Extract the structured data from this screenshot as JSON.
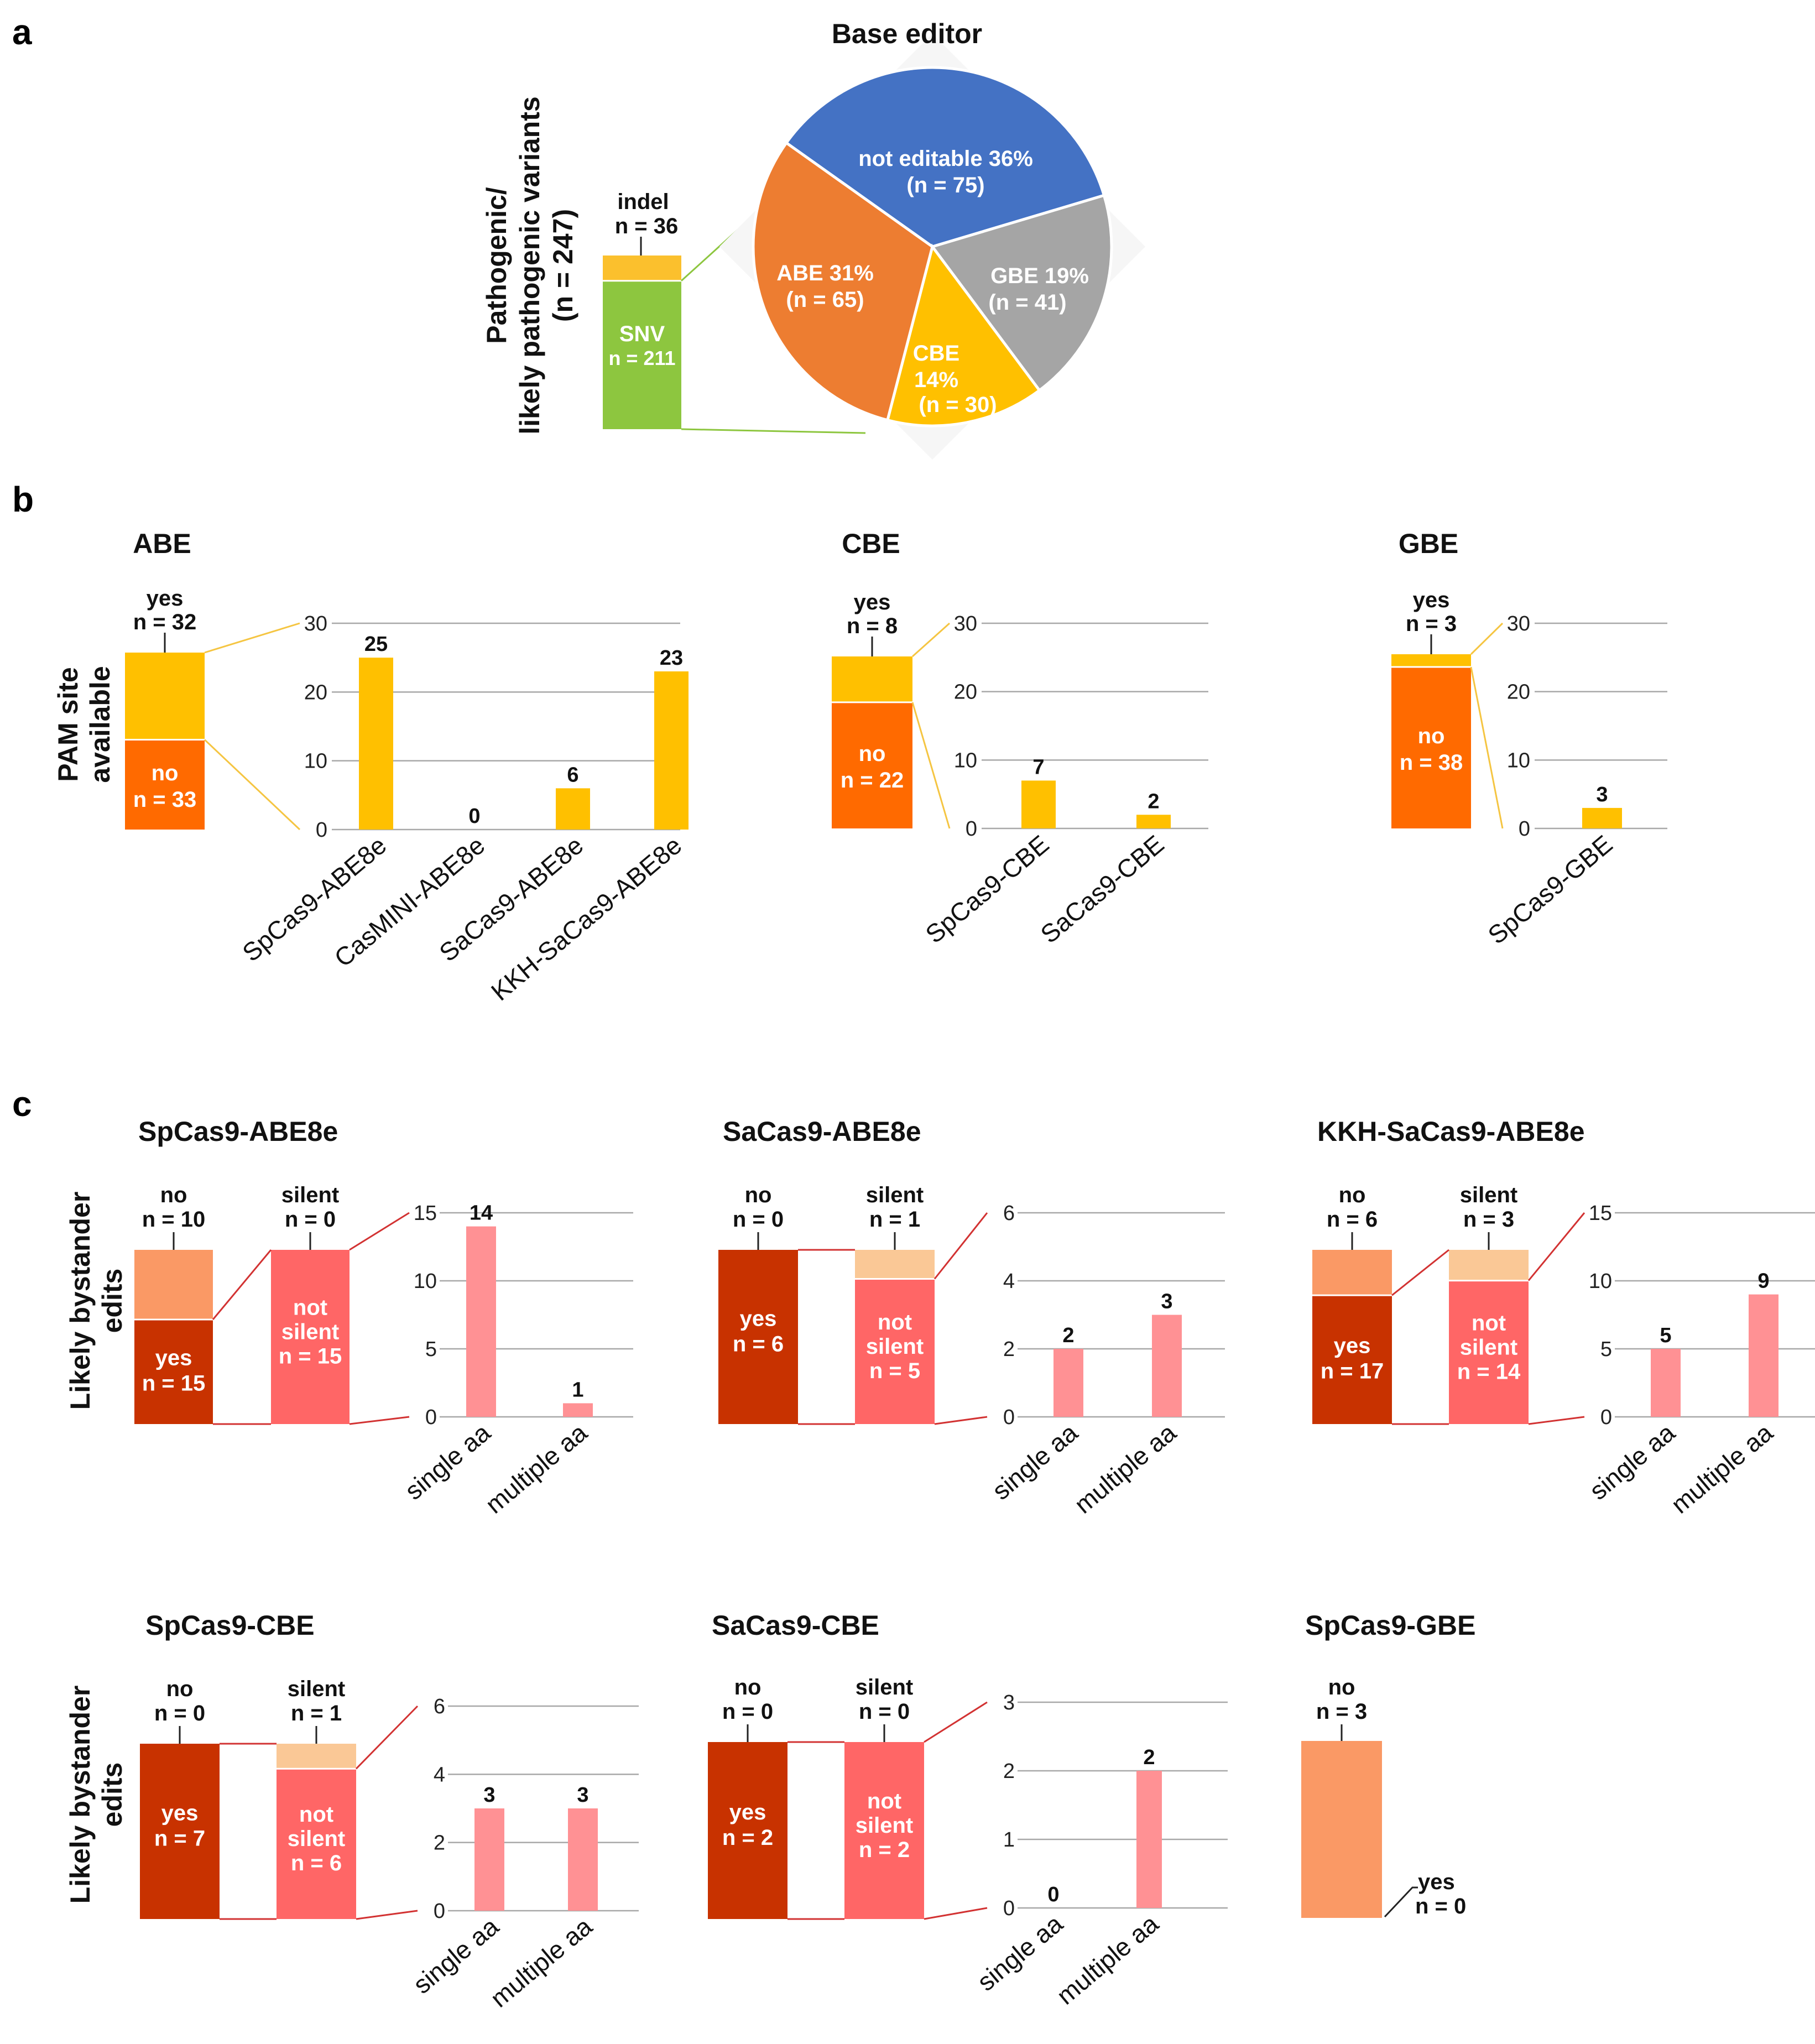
{
  "panels": {
    "a": "a",
    "b": "b",
    "c": "c"
  },
  "chart_data": [
    {
      "id": "a_stack",
      "type": "bar",
      "ylabel": "Pathogenic/likely pathogenic variants (n = 247)",
      "segments": [
        {
          "name": "SNV",
          "count": "n = 211",
          "value": 211,
          "color": "#8DC63F"
        },
        {
          "name": "indel",
          "count": "n = 36",
          "value": 36,
          "color": "#FBC02D"
        }
      ]
    },
    {
      "id": "a_pie",
      "type": "pie",
      "title": "Base editor",
      "slices": [
        {
          "name": "not editable 36%",
          "count": "(n = 75)",
          "value": 75,
          "color": "#4472C4"
        },
        {
          "name": "GBE 19%",
          "count": "(n = 41)",
          "value": 41,
          "color": "#A5A5A5"
        },
        {
          "name": "CBE",
          "pct": "14%",
          "count": "(n = 30)",
          "value": 30,
          "color": "#FFC000"
        },
        {
          "name": "ABE 31%",
          "count": "(n = 65)",
          "value": 65,
          "color": "#ED7D31"
        }
      ]
    },
    {
      "id": "b_abe",
      "type": "bar",
      "title": "ABE",
      "ylabel": "PAM site available",
      "stack": {
        "yes": "yes",
        "yes_count": "n = 32",
        "yes_value": 32,
        "no": "no",
        "no_count": "n = 33",
        "no_value": 33
      },
      "ylim": [
        0,
        30
      ],
      "ticks": [
        "0",
        "10",
        "20",
        "30"
      ],
      "categories": [
        "SpCas9-ABE8e",
        "CasMINI-ABE8e",
        "SaCas9-ABE8e",
        "KKH-SaCas9-ABE8e"
      ],
      "values": [
        25,
        0,
        6,
        23
      ],
      "labels": [
        "25",
        "0",
        "6",
        "23"
      ]
    },
    {
      "id": "b_cbe",
      "type": "bar",
      "title": "CBE",
      "stack": {
        "yes": "yes",
        "yes_count": "n = 8",
        "yes_value": 8,
        "no": "no",
        "no_count": "n = 22",
        "no_value": 22
      },
      "ylim": [
        0,
        30
      ],
      "ticks": [
        "0",
        "10",
        "20",
        "30"
      ],
      "categories": [
        "SpCas9-CBE",
        "SaCas9-CBE"
      ],
      "values": [
        7,
        2
      ],
      "labels": [
        "7",
        "2"
      ]
    },
    {
      "id": "b_gbe",
      "type": "bar",
      "title": "GBE",
      "stack": {
        "yes": "yes",
        "yes_count": "n = 3",
        "yes_value": 3,
        "no": "no",
        "no_count": "n = 38",
        "no_value": 38
      },
      "ylim": [
        0,
        30
      ],
      "ticks": [
        "0",
        "10",
        "20",
        "30"
      ],
      "categories": [
        "SpCas9-GBE"
      ],
      "values": [
        3
      ],
      "labels": [
        "3"
      ]
    },
    {
      "id": "c_sp_abe",
      "type": "bar",
      "title": "SpCas9-ABE8e",
      "ylabel": "Likely bystander edits",
      "bystander": {
        "no": "no",
        "no_count": "n = 10",
        "no_value": 10,
        "yes": "yes",
        "yes_count": "n = 15",
        "yes_value": 15
      },
      "silence": {
        "silent": "silent",
        "silent_count": "n = 0",
        "silent_value": 0,
        "not_silent": "not silent",
        "not_silent_count": "n = 15",
        "not_silent_value": 15
      },
      "ylim": [
        0,
        15
      ],
      "ticks": [
        "0",
        "5",
        "10",
        "15"
      ],
      "categories": [
        "single aa",
        "multiple aa"
      ],
      "values": [
        14,
        1
      ],
      "labels": [
        "14",
        "1"
      ]
    },
    {
      "id": "c_sa_abe",
      "type": "bar",
      "title": "SaCas9-ABE8e",
      "bystander": {
        "no": "no",
        "no_count": "n = 0",
        "no_value": 0,
        "yes": "yes",
        "yes_count": "n = 6",
        "yes_value": 6
      },
      "silence": {
        "silent": "silent",
        "silent_count": "n = 1",
        "silent_value": 1,
        "not_silent": "not silent",
        "not_silent_count": "n = 5",
        "not_silent_value": 5
      },
      "ylim": [
        0,
        6
      ],
      "ticks": [
        "0",
        "2",
        "4",
        "6"
      ],
      "categories": [
        "single aa",
        "multiple aa"
      ],
      "values": [
        2,
        3
      ],
      "labels": [
        "2",
        "3"
      ]
    },
    {
      "id": "c_kkh_abe",
      "type": "bar",
      "title": "KKH-SaCas9-ABE8e",
      "bystander": {
        "no": "no",
        "no_count": "n = 6",
        "no_value": 6,
        "yes": "yes",
        "yes_count": "n = 17",
        "yes_value": 17
      },
      "silence": {
        "silent": "silent",
        "silent_count": "n = 3",
        "silent_value": 3,
        "not_silent": "not silent",
        "not_silent_count": "n = 14",
        "not_silent_value": 14
      },
      "ylim": [
        0,
        15
      ],
      "ticks": [
        "0",
        "5",
        "10",
        "15"
      ],
      "categories": [
        "single aa",
        "multiple aa"
      ],
      "values": [
        5,
        9
      ],
      "labels": [
        "5",
        "9"
      ]
    },
    {
      "id": "c_sp_cbe",
      "type": "bar",
      "title": "SpCas9-CBE",
      "ylabel": "Likely bystander edits",
      "bystander": {
        "no": "no",
        "no_count": "n = 0",
        "no_value": 0,
        "yes": "yes",
        "yes_count": "n = 7",
        "yes_value": 7
      },
      "silence": {
        "silent": "silent",
        "silent_count": "n = 1",
        "silent_value": 1,
        "not_silent": "not silent",
        "not_silent_count": "n = 6",
        "not_silent_value": 6
      },
      "ylim": [
        0,
        6
      ],
      "ticks": [
        "0",
        "2",
        "4",
        "6"
      ],
      "categories": [
        "single aa",
        "multiple aa"
      ],
      "values": [
        3,
        3
      ],
      "labels": [
        "3",
        "3"
      ]
    },
    {
      "id": "c_sa_cbe",
      "type": "bar",
      "title": "SaCas9-CBE",
      "bystander": {
        "no": "no",
        "no_count": "n = 0",
        "no_value": 0,
        "yes": "yes",
        "yes_count": "n = 2",
        "yes_value": 2
      },
      "silence": {
        "silent": "silent",
        "silent_count": "n = 0",
        "silent_value": 0,
        "not_silent": "not silent",
        "not_silent_count": "n = 2",
        "not_silent_value": 2
      },
      "ylim": [
        0,
        3
      ],
      "ticks": [
        "0",
        "1",
        "2",
        "3"
      ],
      "categories": [
        "single aa",
        "multiple aa"
      ],
      "values": [
        0,
        2
      ],
      "labels": [
        "0",
        "2"
      ]
    },
    {
      "id": "c_sp_gbe",
      "type": "bar",
      "title": "SpCas9-GBE",
      "bystander": {
        "no": "no",
        "no_count": "n = 3",
        "no_value": 3,
        "yes": "yes",
        "yes_count": "n = 0",
        "yes_value": 0
      }
    }
  ],
  "colors": {
    "snv": "#8DC63F",
    "indel": "#FBC02D",
    "connector_a": "#8DC63F",
    "pam_yes": "#FFC000",
    "pam_no": "#FF6A00",
    "pam_bar": "#FFC000",
    "pam_connector": "#F5C542",
    "bys_no": "#FA9965",
    "bys_yes": "#C83200",
    "not_silent": "#FF6666",
    "silent": "#FAC896",
    "aa_bar": "#FF9194",
    "c_connector": "#D23232"
  }
}
